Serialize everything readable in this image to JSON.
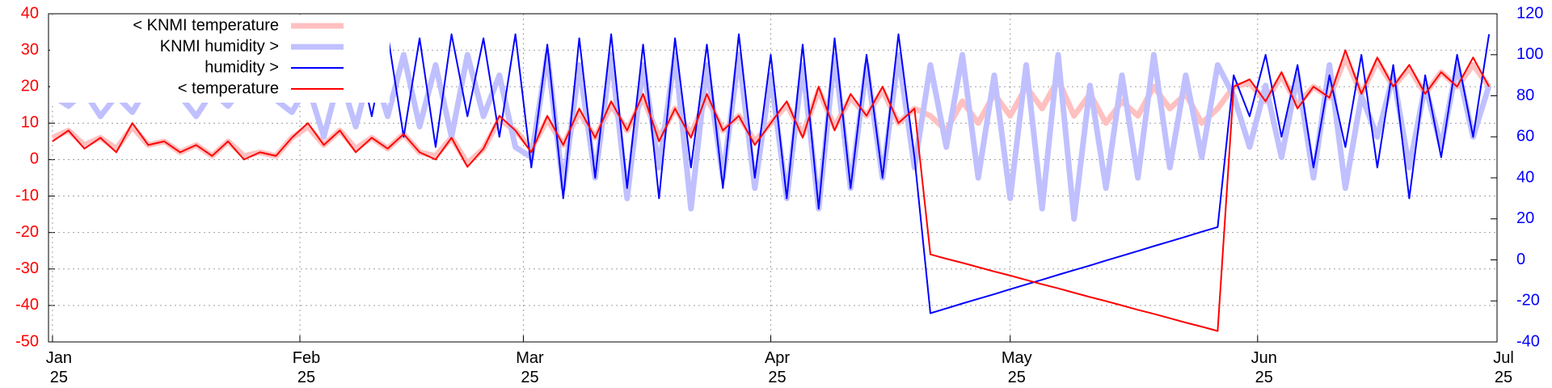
{
  "chart_data": {
    "type": "line",
    "x": [
      0,
      2,
      4,
      6,
      8,
      10,
      12,
      14,
      16,
      18,
      20,
      22,
      24,
      26,
      28,
      30,
      32,
      34,
      36,
      38,
      40,
      42,
      44,
      46,
      48,
      50,
      52,
      54,
      56,
      58,
      60,
      62,
      64,
      66,
      68,
      70,
      72,
      74,
      76,
      78,
      80,
      82,
      84,
      86,
      88,
      90,
      92,
      94,
      96,
      98,
      100,
      102,
      104,
      106,
      108,
      110,
      112,
      114,
      116,
      118,
      120,
      122,
      124,
      126,
      128,
      130,
      132,
      134,
      136,
      138,
      140,
      142,
      144,
      146,
      148,
      150,
      152,
      154,
      156,
      158,
      160,
      162,
      164,
      166,
      168,
      170,
      172,
      174,
      176,
      178,
      180
    ],
    "xlim": [
      -0.5,
      181
    ],
    "xticks": [
      {
        "value": 0,
        "label": "Jan\n25"
      },
      {
        "value": 31,
        "label": "Feb\n25"
      },
      {
        "value": 59,
        "label": "Mar\n25"
      },
      {
        "value": 90,
        "label": "Apr\n25"
      },
      {
        "value": 120,
        "label": "May\n25"
      },
      {
        "value": 151,
        "label": "Jun\n25"
      },
      {
        "value": 181,
        "label": "Jul\n25"
      }
    ],
    "ylim": [
      -50,
      40
    ],
    "yticks": [
      -50,
      -40,
      -30,
      -20,
      -10,
      0,
      10,
      20,
      30,
      40
    ],
    "y2lim": [
      -40,
      120
    ],
    "y2ticks": [
      -40,
      -20,
      0,
      20,
      40,
      60,
      80,
      100,
      120
    ],
    "grid": true,
    "legend": "top-left",
    "series": [
      {
        "name": "< KNMI temperature",
        "color": "#ffc0c0",
        "width": 7,
        "values": [
          6,
          8,
          4,
          6,
          3,
          9,
          4,
          5,
          2,
          4,
          1,
          5,
          1,
          2,
          1,
          6,
          9,
          4,
          8,
          3,
          6,
          3,
          7,
          2,
          1,
          6,
          -1,
          3,
          11,
          8,
          3,
          11,
          4,
          13,
          6,
          15,
          8,
          17,
          6,
          14,
          7,
          17,
          8,
          12,
          5,
          10,
          15,
          7,
          19,
          9,
          17,
          12,
          19,
          10,
          14,
          12,
          8,
          16,
          10,
          18,
          12,
          20,
          14,
          22,
          12,
          18,
          10,
          16,
          12,
          20,
          14,
          18,
          10,
          14,
          20,
          21,
          16,
          23,
          15,
          20,
          17,
          28,
          18,
          27,
          20,
          25,
          18,
          24,
          20,
          26,
          20
        ]
      },
      {
        "name": "KNMI humidity >",
        "color": "#c0c0ff",
        "width": 7,
        "axis": "y2",
        "values": [
          80,
          75,
          82,
          70,
          80,
          72,
          85,
          78,
          80,
          70,
          82,
          75,
          85,
          80,
          78,
          72,
          85,
          60,
          90,
          65,
          95,
          70,
          100,
          65,
          95,
          60,
          100,
          70,
          90,
          55,
          50,
          100,
          35,
          95,
          40,
          100,
          30,
          95,
          45,
          100,
          25,
          95,
          40,
          100,
          35,
          90,
          30,
          95,
          25,
          100,
          35,
          95,
          40,
          100,
          45,
          95,
          55,
          100,
          40,
          90,
          30,
          95,
          25,
          100,
          20,
          85,
          35,
          90,
          40,
          100,
          45,
          90,
          50,
          95,
          80,
          55,
          85,
          50,
          90,
          40,
          95,
          35,
          80,
          60,
          90,
          45,
          85,
          55,
          95,
          60,
          85
        ]
      },
      {
        "name": "humidity >",
        "color": "#0000ff",
        "width": 2,
        "axis": "y2",
        "values": [
          null,
          null,
          null,
          null,
          null,
          null,
          null,
          null,
          null,
          null,
          null,
          null,
          null,
          null,
          null,
          null,
          null,
          null,
          null,
          105,
          70,
          110,
          60,
          108,
          55,
          110,
          70,
          108,
          60,
          110,
          45,
          105,
          30,
          108,
          40,
          110,
          35,
          105,
          30,
          108,
          45,
          105,
          35,
          110,
          40,
          100,
          30,
          105,
          25,
          108,
          35,
          100,
          40,
          110,
          50,
          -26,
          -23.7,
          -21.3,
          -19,
          -16.7,
          -14.3,
          -12,
          -9.7,
          -7.3,
          -5,
          -2.7,
          -0.3,
          2,
          4.3,
          6.7,
          9,
          11.3,
          13.7,
          16,
          90,
          70,
          100,
          60,
          95,
          45,
          90,
          55,
          100,
          45,
          95,
          30,
          90,
          50,
          100,
          60,
          110
        ]
      },
      {
        "name": "< temperature",
        "color": "#ff0000",
        "width": 2,
        "values": [
          5,
          8,
          3,
          6,
          2,
          10,
          4,
          5,
          2,
          4,
          1,
          5,
          0,
          2,
          1,
          6,
          10,
          4,
          8,
          2,
          6,
          3,
          7,
          2,
          0,
          6,
          -2,
          3,
          12,
          8,
          2,
          12,
          4,
          14,
          6,
          16,
          8,
          18,
          5,
          14,
          6,
          18,
          8,
          12,
          4,
          10,
          16,
          6,
          20,
          8,
          18,
          12,
          20,
          10,
          14,
          -26,
          -27.2,
          -28.3,
          -29.5,
          -30.7,
          -31.8,
          -33,
          -34.2,
          -35.3,
          -36.5,
          -37.7,
          -38.8,
          -40,
          -41.2,
          -42.3,
          -43.5,
          -44.7,
          -45.8,
          -47,
          20,
          22,
          16,
          24,
          14,
          20,
          17,
          30,
          18,
          28,
          20,
          26,
          18,
          24,
          20,
          28,
          20
        ]
      }
    ]
  }
}
